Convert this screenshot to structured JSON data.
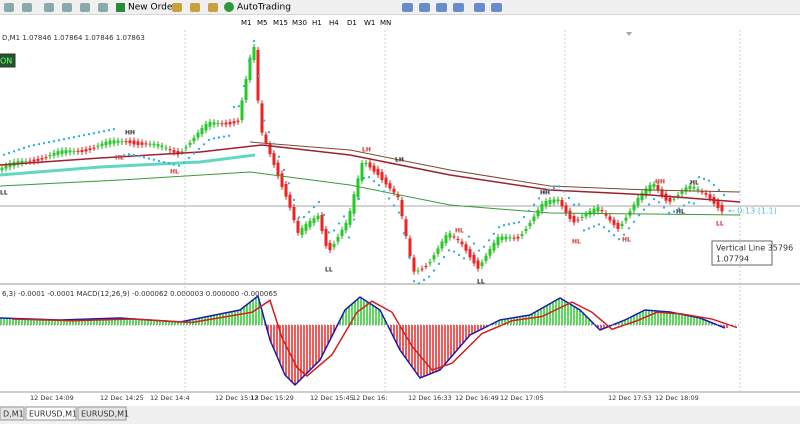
{
  "toolbar": {
    "new_order": "New Order",
    "auto_trading": "AutoTrading",
    "timeframes": [
      "M1",
      "M5",
      "M15",
      "M30",
      "H1",
      "H4",
      "D1",
      "W1",
      "MN"
    ]
  },
  "chart": {
    "header": "D,M1  1.07846 1.07864 1.07846 1.07863",
    "badge": "ON",
    "price_marker": "← 0:13 (1.1)",
    "tooltip": [
      "Vertical Line 35796",
      "1.07794"
    ],
    "swing_labels": [
      "LL",
      "HL",
      "HH",
      "HL",
      "LL",
      "LH",
      "LL",
      "HL",
      "LH",
      "HL",
      "HH",
      "HL",
      "HL",
      "HH",
      "HL",
      "LL"
    ],
    "indicator_header": "6,3) -0.0001 -0.0001  MACD(12,26,9) -0.000062 0.000003 0.000000 -0.000065",
    "time_labels": [
      "12 Dec 14:09",
      "12 Dec 14:25",
      "12 Dec 14:4",
      "12 Dec 15:13",
      "12 Dec 15:29",
      "12 Dec 15:45",
      "12 Dec 16:",
      "12 Dec 16:33",
      "12 Dec 16:49",
      "12 Dec 17:05",
      "12 Dec 17:53",
      "12 Dec 18:09"
    ]
  },
  "tabs": [
    "D,M1",
    "EURUSD,M1",
    "EURUSD,M1"
  ]
}
